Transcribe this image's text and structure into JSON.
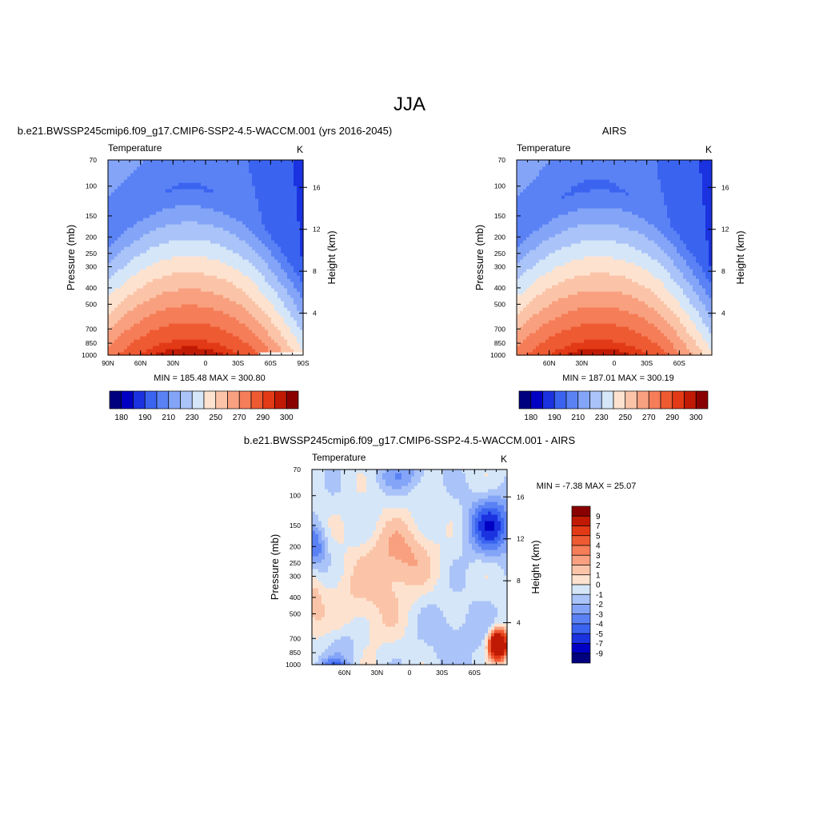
{
  "title": "JJA",
  "chart_data": [
    {
      "type": "heatmap",
      "title": "b.e21.BWSSP245cmip6.f09_g17.CMIP6-SSP2-4.5-WACCM.001 (yrs 2016-2045)",
      "left_label": "Temperature",
      "units": "K",
      "ylabel": "Pressure (mb)",
      "y2label": "Height (km)",
      "x_tick_labels": [
        "90N",
        "60N",
        "30N",
        "0",
        "30S",
        "60S",
        "90S"
      ],
      "x_ticks": [
        90,
        60,
        30,
        0,
        -30,
        -60,
        -90
      ],
      "xlim": [
        90,
        -90
      ],
      "y_ticks": [
        70,
        100,
        150,
        200,
        250,
        300,
        400,
        500,
        700,
        850,
        1000
      ],
      "ylim": [
        1000,
        70
      ],
      "y_scale": "log",
      "height_ticks": [
        4,
        8,
        12,
        16
      ],
      "stats": "MIN = 185.48  MAX = 300.80",
      "min": 185.48,
      "max": 300.8,
      "colorbar_levels": [
        175,
        180,
        185,
        190,
        200,
        210,
        220,
        230,
        240,
        250,
        260,
        270,
        280,
        290,
        295,
        300
      ],
      "colorbar_tick_labels": [
        "180",
        "190",
        "210",
        "230",
        "250",
        "270",
        "290",
        "300"
      ],
      "colors": [
        "#00007f",
        "#0000c4",
        "#1a32e0",
        "#3a64f0",
        "#5a82f5",
        "#84a5f7",
        "#aac3f8",
        "#d5e6f8",
        "#fde3cf",
        "#fbc4a8",
        "#f8a07f",
        "#f57d58",
        "#ee5a32",
        "#e23a16",
        "#c11a04",
        "#8a0000"
      ]
    },
    {
      "type": "heatmap",
      "title": "AIRS",
      "left_label": "Temperature",
      "units": "K",
      "ylabel": "Pressure (mb)",
      "y2label": "Height (km)",
      "x_tick_labels": [
        "60N",
        "30N",
        "0",
        "30S",
        "60S"
      ],
      "x_ticks": [
        60,
        30,
        0,
        -30,
        -60
      ],
      "xlim": [
        90,
        -90
      ],
      "y_ticks": [
        70,
        100,
        150,
        200,
        250,
        300,
        400,
        500,
        700,
        850,
        1000
      ],
      "ylim": [
        1000,
        70
      ],
      "y_scale": "log",
      "height_ticks": [
        4,
        8,
        12,
        16
      ],
      "stats": "MIN = 187.01  MAX = 300.19",
      "min": 187.01,
      "max": 300.19,
      "colorbar_levels": [
        175,
        180,
        185,
        190,
        200,
        210,
        220,
        230,
        240,
        250,
        260,
        270,
        280,
        290,
        295,
        300
      ],
      "colorbar_tick_labels": [
        "180",
        "190",
        "210",
        "230",
        "250",
        "270",
        "290",
        "300"
      ],
      "colors": [
        "#00007f",
        "#0000c4",
        "#1a32e0",
        "#3a64f0",
        "#5a82f5",
        "#84a5f7",
        "#aac3f8",
        "#d5e6f8",
        "#fde3cf",
        "#fbc4a8",
        "#f8a07f",
        "#f57d58",
        "#ee5a32",
        "#e23a16",
        "#c11a04",
        "#8a0000"
      ]
    },
    {
      "type": "heatmap",
      "title": "b.e21.BWSSP245cmip6.f09_g17.CMIP6-SSP2-4.5-WACCM.001 - AIRS",
      "left_label": "Temperature",
      "units": "K",
      "ylabel": "Pressure (mb)",
      "y2label": "Height (km)",
      "x_tick_labels": [
        "60N",
        "30N",
        "0",
        "30S",
        "60S"
      ],
      "x_ticks": [
        60,
        30,
        0,
        -30,
        -60
      ],
      "xlim": [
        90,
        -90
      ],
      "y_ticks": [
        70,
        100,
        150,
        200,
        250,
        300,
        400,
        500,
        700,
        850,
        1000
      ],
      "ylim": [
        1000,
        70
      ],
      "y_scale": "log",
      "height_ticks": [
        4,
        8,
        12,
        16
      ],
      "stats": "MIN =  -7.38  MAX =  25.07",
      "min": -7.38,
      "max": 25.07,
      "colorbar_levels": [
        9,
        7,
        5,
        4,
        3,
        2,
        1,
        0,
        -1,
        -2,
        -3,
        -4,
        -5,
        -7,
        -9
      ],
      "colorbar_tick_labels": [
        "9",
        "7",
        "5",
        "4",
        "3",
        "2",
        "1",
        "0",
        "-1",
        "-2",
        "-3",
        "-4",
        "-5",
        "-7",
        "-9"
      ],
      "colors": [
        "#8a0000",
        "#c11a04",
        "#e23a16",
        "#ee5a32",
        "#f57d58",
        "#f8a07f",
        "#fbc4a8",
        "#fde3cf",
        "#d5e6f8",
        "#aac3f8",
        "#84a5f7",
        "#5a82f5",
        "#3a64f0",
        "#1a32e0",
        "#0000c4",
        "#00007f"
      ]
    }
  ]
}
